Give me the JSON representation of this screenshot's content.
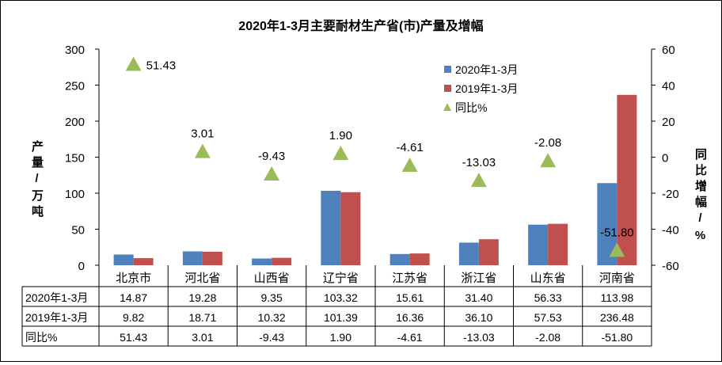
{
  "chart_data": {
    "type": "bar",
    "title": "2020年1-3月主要耐材生产省(市)产量及增幅",
    "ylabel": "产量/万吨",
    "y2label": "同比增幅/%",
    "ylim": [
      0,
      300
    ],
    "yticks": [
      0,
      50,
      100,
      150,
      200,
      250,
      300
    ],
    "y2lim": [
      -60,
      60
    ],
    "y2ticks": [
      -60,
      -40,
      -20,
      0,
      20,
      40,
      60
    ],
    "categories": [
      "北京市",
      "河北省",
      "山西省",
      "辽宁省",
      "江苏省",
      "浙江省",
      "山东省",
      "河南省"
    ],
    "series": [
      {
        "name": "2020年1-3月",
        "kind": "bar",
        "axis": "left",
        "color": "#4F81BD",
        "values": [
          14.87,
          19.28,
          9.35,
          103.32,
          15.61,
          31.4,
          56.33,
          113.98
        ],
        "labels": [
          "14.87",
          "19.28",
          "9.35",
          "103.32",
          "15.61",
          "31.40",
          "56.33",
          "113.98"
        ]
      },
      {
        "name": "2019年1-3月",
        "kind": "bar",
        "axis": "left",
        "color": "#C0504D",
        "values": [
          9.82,
          18.71,
          10.32,
          101.39,
          16.36,
          36.1,
          57.53,
          236.48
        ],
        "labels": [
          "9.82",
          "18.71",
          "10.32",
          "101.39",
          "16.36",
          "36.10",
          "57.53",
          "236.48"
        ]
      },
      {
        "name": "同比%",
        "kind": "marker",
        "axis": "right",
        "color": "#9BBB59",
        "values": [
          51.43,
          3.01,
          -9.43,
          1.9,
          -4.61,
          -13.03,
          -2.08,
          -51.8
        ],
        "labels": [
          "51.43",
          "3.01",
          "-9.43",
          "1.90",
          "-4.61",
          "-13.03",
          "-2.08",
          "-51.80"
        ]
      }
    ],
    "legend": "top-right",
    "data_table": true
  }
}
